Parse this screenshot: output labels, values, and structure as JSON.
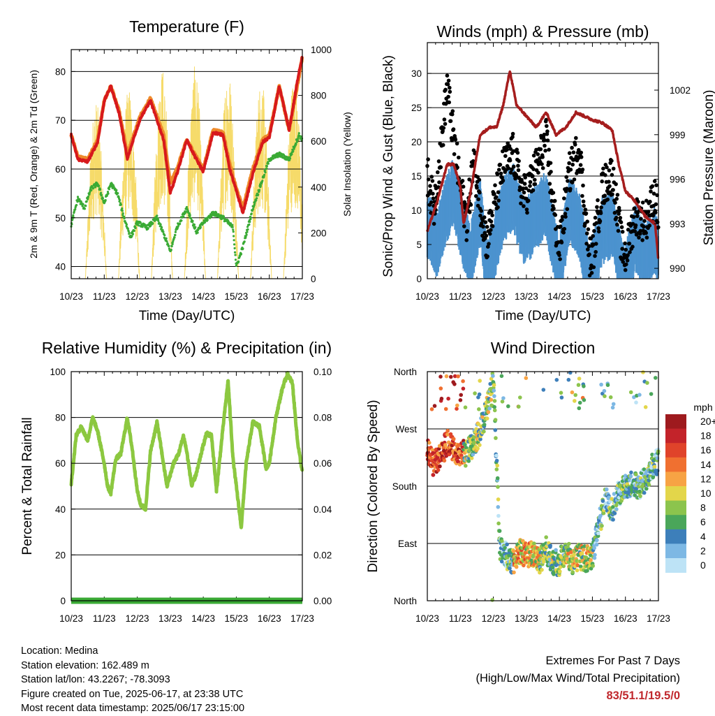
{
  "chart_data": [
    {
      "id": "temp",
      "type": "line",
      "title": "Temperature (F)",
      "xlabel": "Time (Day/UTC)",
      "ylabel_left": "2m & 9m T (Red, Orange) & 2m Td (Green)",
      "ylabel_right": "Solar Insolation (Yellow)",
      "x_ticks": [
        "10/23",
        "11/23",
        "12/23",
        "13/23",
        "14/23",
        "15/23",
        "16/23",
        "17/23"
      ],
      "ylim_left": [
        37.5,
        84.5
      ],
      "yticks_left": [
        40,
        50,
        60,
        70,
        80
      ],
      "ylim_right": [
        0,
        1000
      ],
      "yticks_right": [
        0,
        200,
        400,
        600,
        800,
        1000
      ],
      "grid": "horizontal",
      "series": [
        {
          "color": "#ee8a2b",
          "x": [
            10.0,
            10.2,
            10.5,
            10.8,
            11.0,
            11.2,
            11.45,
            11.7,
            11.9,
            12.1,
            12.4,
            12.8,
            13.0,
            13.2,
            13.5,
            13.75,
            14.0,
            14.3,
            14.6,
            14.8,
            15.0,
            15.2,
            15.5,
            15.8,
            16.0,
            16.3,
            16.6,
            16.9,
            17.0
          ],
          "y": [
            67,
            62.5,
            62,
            66,
            74,
            77,
            72,
            63,
            67,
            71,
            74.5,
            67,
            57,
            60,
            66,
            63,
            60,
            68,
            67.5,
            61,
            56,
            52,
            60,
            66,
            67,
            77,
            68,
            79,
            83
          ]
        },
        {
          "color": "#d7191c",
          "x": [
            10.0,
            10.2,
            10.5,
            10.8,
            11.0,
            11.2,
            11.45,
            11.7,
            11.9,
            12.1,
            12.4,
            12.8,
            13.0,
            13.2,
            13.5,
            13.75,
            14.0,
            14.3,
            14.6,
            14.8,
            15.0,
            15.2,
            15.5,
            15.8,
            16.0,
            16.3,
            16.6,
            16.9,
            17.0
          ],
          "y": [
            67,
            62,
            61.5,
            65.5,
            74,
            77,
            71.5,
            62,
            66.5,
            70.5,
            74,
            66,
            55,
            59,
            66,
            62.5,
            59.5,
            67.5,
            67,
            60,
            55.5,
            51,
            59,
            65.5,
            66.5,
            77,
            68,
            80,
            83
          ]
        },
        {
          "color": "#3aaa35",
          "x": [
            10.0,
            10.2,
            10.4,
            10.6,
            10.8,
            11.0,
            11.2,
            11.4,
            11.6,
            11.8,
            12.0,
            12.3,
            12.6,
            12.9,
            13.0,
            13.2,
            13.5,
            13.8,
            14.0,
            14.3,
            14.6,
            14.9,
            15.0,
            15.2,
            15.5,
            15.8,
            16.0,
            16.3,
            16.6,
            16.9,
            17.0
          ],
          "y": [
            48.5,
            54,
            52,
            56,
            57,
            53,
            57,
            55,
            50,
            46,
            49,
            48,
            50,
            45,
            43,
            48,
            52,
            47,
            49,
            51,
            50,
            48,
            40,
            44,
            52,
            58,
            62,
            63,
            62,
            67,
            66
          ]
        }
      ],
      "solar": {
        "color": "#f5d75a",
        "peaks_x": [
          10.75,
          11.75,
          12.75,
          13.75,
          14.75,
          15.75,
          16.75
        ],
        "peaks": [
          780,
          840,
          930,
          930,
          930,
          880,
          900
        ]
      }
    },
    {
      "id": "winds",
      "type": "scatter",
      "title": "Winds (mph) & Pressure (mb)",
      "xlabel": "Time (Day/UTC)",
      "ylabel_left": "Sonic/Prop Wind & Gust (Blue, Black)",
      "ylabel_right": "Station Pressure (Maroon)",
      "x_ticks": [
        "10/23",
        "11/23",
        "12/23",
        "13/23",
        "14/23",
        "15/23",
        "16/23",
        "17/23"
      ],
      "ylim_left": [
        0,
        34.5
      ],
      "yticks_left": [
        0,
        5,
        10,
        15,
        20,
        25,
        30
      ],
      "ylim_right": [
        989.3,
        1005.2
      ],
      "yticks_right": [
        990,
        993,
        996,
        999,
        1002
      ],
      "grid": "horizontal",
      "series": [
        {
          "color": "#4c93cf",
          "x": [
            10.0,
            10.3,
            10.5,
            10.8,
            11.0,
            11.3,
            11.6,
            11.8,
            12.0,
            12.3,
            12.6,
            12.9,
            13.0,
            13.3,
            13.6,
            13.9,
            14.0,
            14.3,
            14.6,
            14.9,
            15.0,
            15.3,
            15.6,
            15.9,
            16.0,
            16.3,
            16.6,
            16.9,
            17.0
          ],
          "y": [
            10,
            7,
            11,
            15,
            10,
            5,
            12,
            3,
            6,
            12,
            14,
            9,
            9,
            11,
            13,
            5,
            3,
            12,
            10,
            2,
            3,
            9,
            10,
            3,
            2,
            8,
            5,
            8,
            5
          ]
        },
        {
          "color": "#000000",
          "x": [
            10.0,
            10.2,
            10.4,
            10.6,
            10.8,
            11.0,
            11.2,
            11.4,
            11.6,
            11.8,
            12.0,
            12.3,
            12.6,
            12.9,
            13.0,
            13.3,
            13.6,
            13.9,
            14.0,
            14.3,
            14.6,
            14.9,
            15.0,
            15.3,
            15.6,
            15.9,
            16.0,
            16.3,
            16.6,
            16.9,
            17.0
          ],
          "y": [
            15,
            10,
            18,
            28,
            20,
            13,
            8,
            17,
            11,
            5,
            10,
            16,
            18,
            12,
            12,
            16,
            20,
            7,
            4,
            15,
            19,
            3,
            3,
            13,
            15,
            4,
            3,
            9,
            8,
            12,
            8
          ]
        },
        {
          "color": "#a51d1d",
          "x": [
            10.0,
            10.3,
            10.6,
            10.8,
            11.0,
            11.1,
            11.3,
            11.6,
            11.9,
            12.1,
            12.3,
            12.5,
            12.7,
            12.9,
            13.1,
            13.3,
            13.6,
            13.9,
            14.2,
            14.5,
            14.8,
            15.0,
            15.3,
            15.6,
            15.8,
            16.0,
            16.3,
            16.6,
            16.9,
            17.0
          ],
          "y": [
            992.5,
            994.5,
            997,
            997,
            995.5,
            993,
            995,
            999,
            999.5,
            999.5,
            1001,
            1003.3,
            1001,
            1000.5,
            1000,
            999.5,
            1000.5,
            999,
            999.5,
            1000.5,
            1000.2,
            1000,
            999.8,
            999.3,
            997,
            995.2,
            994.5,
            993.5,
            993,
            990.5
          ]
        }
      ]
    },
    {
      "id": "rh",
      "type": "line",
      "title": "Relative Humidity (%) & Precipitation (in)",
      "xlabel": "Time (Day/UTC)",
      "ylabel_left": "Percent & Total Rainfall",
      "x_ticks": [
        "10/23",
        "11/23",
        "12/23",
        "13/23",
        "14/23",
        "15/23",
        "16/23",
        "17/23"
      ],
      "ylim_left": [
        0,
        100
      ],
      "yticks_left": [
        0,
        20,
        40,
        60,
        80,
        100
      ],
      "ylim_right": [
        0,
        0.1
      ],
      "yticks_right": [
        "0.00",
        "0.02",
        "0.04",
        "0.06",
        "0.08",
        "0.10"
      ],
      "grid": "horizontal",
      "series": [
        {
          "color": "#8cc840",
          "x": [
            10.0,
            10.15,
            10.3,
            10.5,
            10.65,
            10.8,
            11.0,
            11.1,
            11.2,
            11.35,
            11.5,
            11.7,
            11.85,
            12.0,
            12.1,
            12.25,
            12.4,
            12.6,
            12.75,
            12.9,
            13.1,
            13.25,
            13.4,
            13.5,
            13.65,
            13.8,
            14.0,
            14.1,
            14.25,
            14.4,
            14.6,
            14.75,
            14.9,
            15.0,
            15.15,
            15.3,
            15.5,
            15.7,
            15.9,
            16.0,
            16.2,
            16.4,
            16.55,
            16.7,
            16.85,
            17.0
          ],
          "y": [
            51,
            72,
            76,
            70,
            80,
            74,
            60,
            50,
            47,
            62,
            64,
            80,
            66,
            48,
            42,
            40,
            65,
            78,
            64,
            50,
            60,
            64,
            72,
            65,
            50,
            56,
            68,
            73,
            72,
            48,
            76,
            96,
            62,
            50,
            32,
            60,
            78,
            76,
            58,
            60,
            80,
            93,
            99,
            95,
            70,
            56
          ]
        },
        {
          "color": "#3aaa35",
          "x": [
            10.0,
            17.0
          ],
          "y": [
            0,
            0
          ]
        }
      ]
    },
    {
      "id": "wdir",
      "type": "scatter",
      "title": "Wind Direction",
      "xlabel": "Time (Day/UTC)",
      "ylabel_left": "Direction (Colored By Speed)",
      "x_ticks": [
        "10/23",
        "11/23",
        "12/23",
        "13/23",
        "14/23",
        "15/23",
        "16/23",
        "17/23"
      ],
      "ylim_left": [
        0,
        360
      ],
      "yticks_left": [
        "North",
        "East",
        "South",
        "West",
        "North"
      ],
      "grid": "horizontal",
      "legend": {
        "title": "mph",
        "labels": [
          "20+",
          "18",
          "16",
          "14",
          "12",
          "10",
          "8",
          "6",
          "4",
          "2",
          "0"
        ],
        "colors": [
          "#9e1a1e",
          "#c3232a",
          "#e0432a",
          "#f07030",
          "#f7a344",
          "#e3d64a",
          "#8cc44d",
          "#4aa65a",
          "#3d7fba",
          "#7db8e4",
          "#bde3f6"
        ],
        "placement": "right"
      },
      "series": [
        {
          "name": "",
          "x": [
            10.0,
            10.2,
            10.4,
            10.6,
            10.8,
            11.0,
            11.2,
            11.4,
            11.6,
            11.8,
            11.9,
            12.0,
            12.2,
            12.4,
            12.6,
            12.8,
            13.0,
            13.2,
            13.4,
            13.6,
            13.8,
            14.0,
            14.2,
            14.4,
            14.6,
            14.8,
            15.0,
            15.2,
            15.4,
            15.6,
            15.8,
            16.0,
            16.2,
            16.4,
            16.6,
            16.8,
            17.0
          ],
          "y": [
            235,
            215,
            225,
            250,
            235,
            232,
            232,
            248,
            265,
            300,
            325,
            350,
            85,
            70,
            60,
            80,
            70,
            75,
            60,
            80,
            60,
            60,
            80,
            60,
            70,
            65,
            70,
            120,
            160,
            140,
            170,
            180,
            185,
            180,
            190,
            210,
            220
          ]
        }
      ]
    }
  ],
  "info": {
    "location": "Location: Medina",
    "elevation": "Station elevation: 162.489 m",
    "latlon": "Station lat/lon: 43.2267; -78.3093",
    "created": "Figure created on Tue, 2025-06-17, at 23:38 UTC",
    "latest": "Most recent data timestamp: 2025/06/17 23:15:00"
  },
  "extremes": {
    "heading": "Extremes For Past 7 Days",
    "subheading": "(High/Low/Max Wind/Total Precipitation)",
    "values": "83/51.1/19.5/0"
  }
}
